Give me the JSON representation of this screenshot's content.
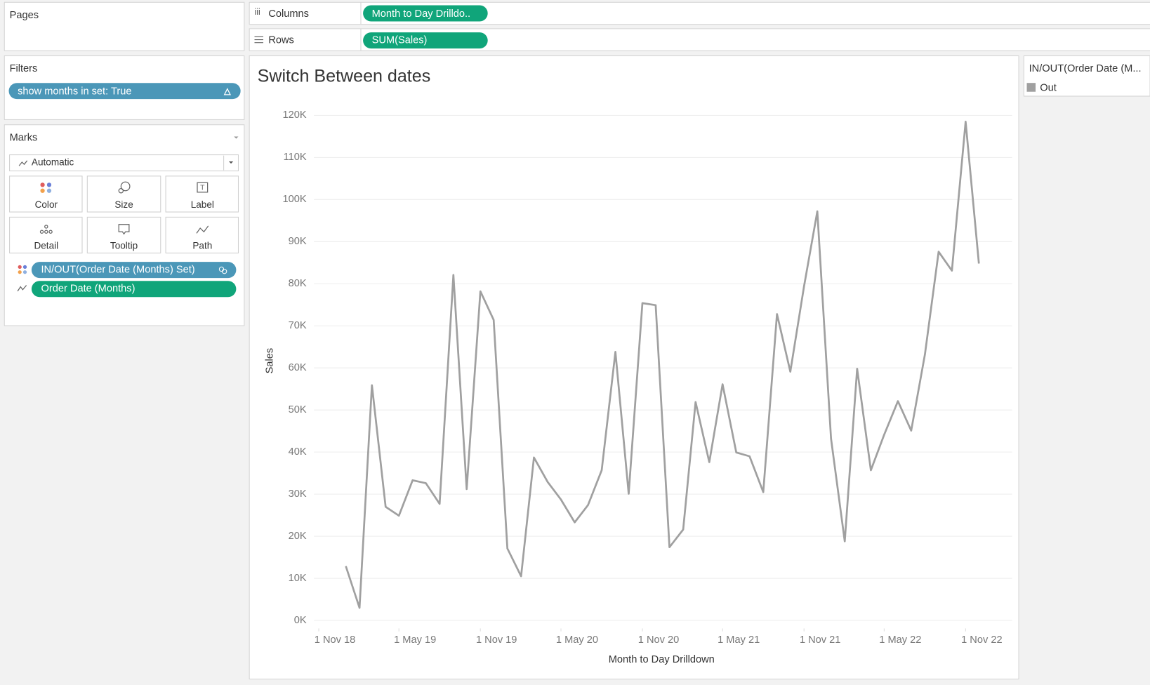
{
  "pages_panel": {
    "title": "Pages"
  },
  "shelves": {
    "columns": {
      "label": "Columns",
      "pill": "Month to Day Drilldo.."
    },
    "rows": {
      "label": "Rows",
      "pill": "SUM(Sales)"
    }
  },
  "filters": {
    "title": "Filters",
    "pill": "show months in set: True"
  },
  "marks": {
    "title": "Marks",
    "type": "Automatic",
    "buttons": [
      "Color",
      "Size",
      "Label",
      "Detail",
      "Tooltip",
      "Path"
    ],
    "pills": [
      "IN/OUT(Order Date (Months) Set)",
      "Order Date (Months)"
    ]
  },
  "chart_data": {
    "type": "line",
    "title": "Switch Between dates",
    "x_label": "Month to Day Drilldown",
    "y_label": "Sales",
    "legend_title": "IN/OUT(Order Date (M...",
    "x": [
      "2019-01-01",
      "2019-02-01",
      "2019-03-01",
      "2019-04-01",
      "2019-05-01",
      "2019-06-01",
      "2019-07-01",
      "2019-08-01",
      "2019-09-01",
      "2019-10-01",
      "2019-11-01",
      "2019-12-01",
      "2020-01-01",
      "2020-02-01",
      "2020-03-01",
      "2020-04-01",
      "2020-05-01",
      "2020-06-01",
      "2020-07-01",
      "2020-08-01",
      "2020-09-01",
      "2020-10-01",
      "2020-11-01",
      "2020-12-01",
      "2021-01-01",
      "2021-02-01",
      "2021-03-01",
      "2021-04-01",
      "2021-05-01",
      "2021-06-01",
      "2021-07-01",
      "2021-08-01",
      "2021-09-01",
      "2021-10-01",
      "2021-11-01",
      "2021-12-01",
      "2022-01-01",
      "2022-02-01",
      "2022-03-01",
      "2022-04-01",
      "2022-05-01",
      "2022-06-01",
      "2022-07-01",
      "2022-08-01",
      "2022-09-01",
      "2022-10-01",
      "2022-11-01",
      "2022-12-01"
    ],
    "series": [
      {
        "name": "Out",
        "color": "#a0a0a0",
        "values": [
          12900,
          3000,
          55900,
          27000,
          24900,
          33300,
          32600,
          27700,
          82100,
          31200,
          78200,
          71400,
          17100,
          10500,
          38700,
          32900,
          28700,
          23300,
          27400,
          35700,
          63800,
          30100,
          75400,
          74900,
          17400,
          21600,
          51900,
          37600,
          56100,
          39900,
          39000,
          30500,
          72800,
          59100,
          79400,
          97200,
          43200,
          18800,
          59800,
          35700,
          44100,
          52100,
          45100,
          63200,
          87600,
          83100,
          118500,
          84800
        ]
      }
    ],
    "xlim": [
      "2018-10-21",
      "2023-02-14"
    ],
    "xticks": [
      {
        "value": "2018-11-01",
        "label": "1 Nov 18"
      },
      {
        "value": "2019-05-01",
        "label": "1 May 19"
      },
      {
        "value": "2019-11-01",
        "label": "1 Nov 19"
      },
      {
        "value": "2020-05-01",
        "label": "1 May 20"
      },
      {
        "value": "2020-11-01",
        "label": "1 Nov 20"
      },
      {
        "value": "2021-05-01",
        "label": "1 May 21"
      },
      {
        "value": "2021-11-01",
        "label": "1 Nov 21"
      },
      {
        "value": "2022-05-01",
        "label": "1 May 22"
      },
      {
        "value": "2022-11-01",
        "label": "1 Nov 22"
      }
    ],
    "ylim": [
      -1900,
      123000
    ],
    "yticks": [
      {
        "value": 0,
        "label": "0K"
      },
      {
        "value": 10000,
        "label": "10K"
      },
      {
        "value": 20000,
        "label": "20K"
      },
      {
        "value": 30000,
        "label": "30K"
      },
      {
        "value": 40000,
        "label": "40K"
      },
      {
        "value": 50000,
        "label": "50K"
      },
      {
        "value": 60000,
        "label": "60K"
      },
      {
        "value": 70000,
        "label": "70K"
      },
      {
        "value": 80000,
        "label": "80K"
      },
      {
        "value": 90000,
        "label": "90K"
      },
      {
        "value": 100000,
        "label": "100K"
      },
      {
        "value": 110000,
        "label": "110K"
      },
      {
        "value": 120000,
        "label": "120K"
      }
    ],
    "grid": true
  }
}
